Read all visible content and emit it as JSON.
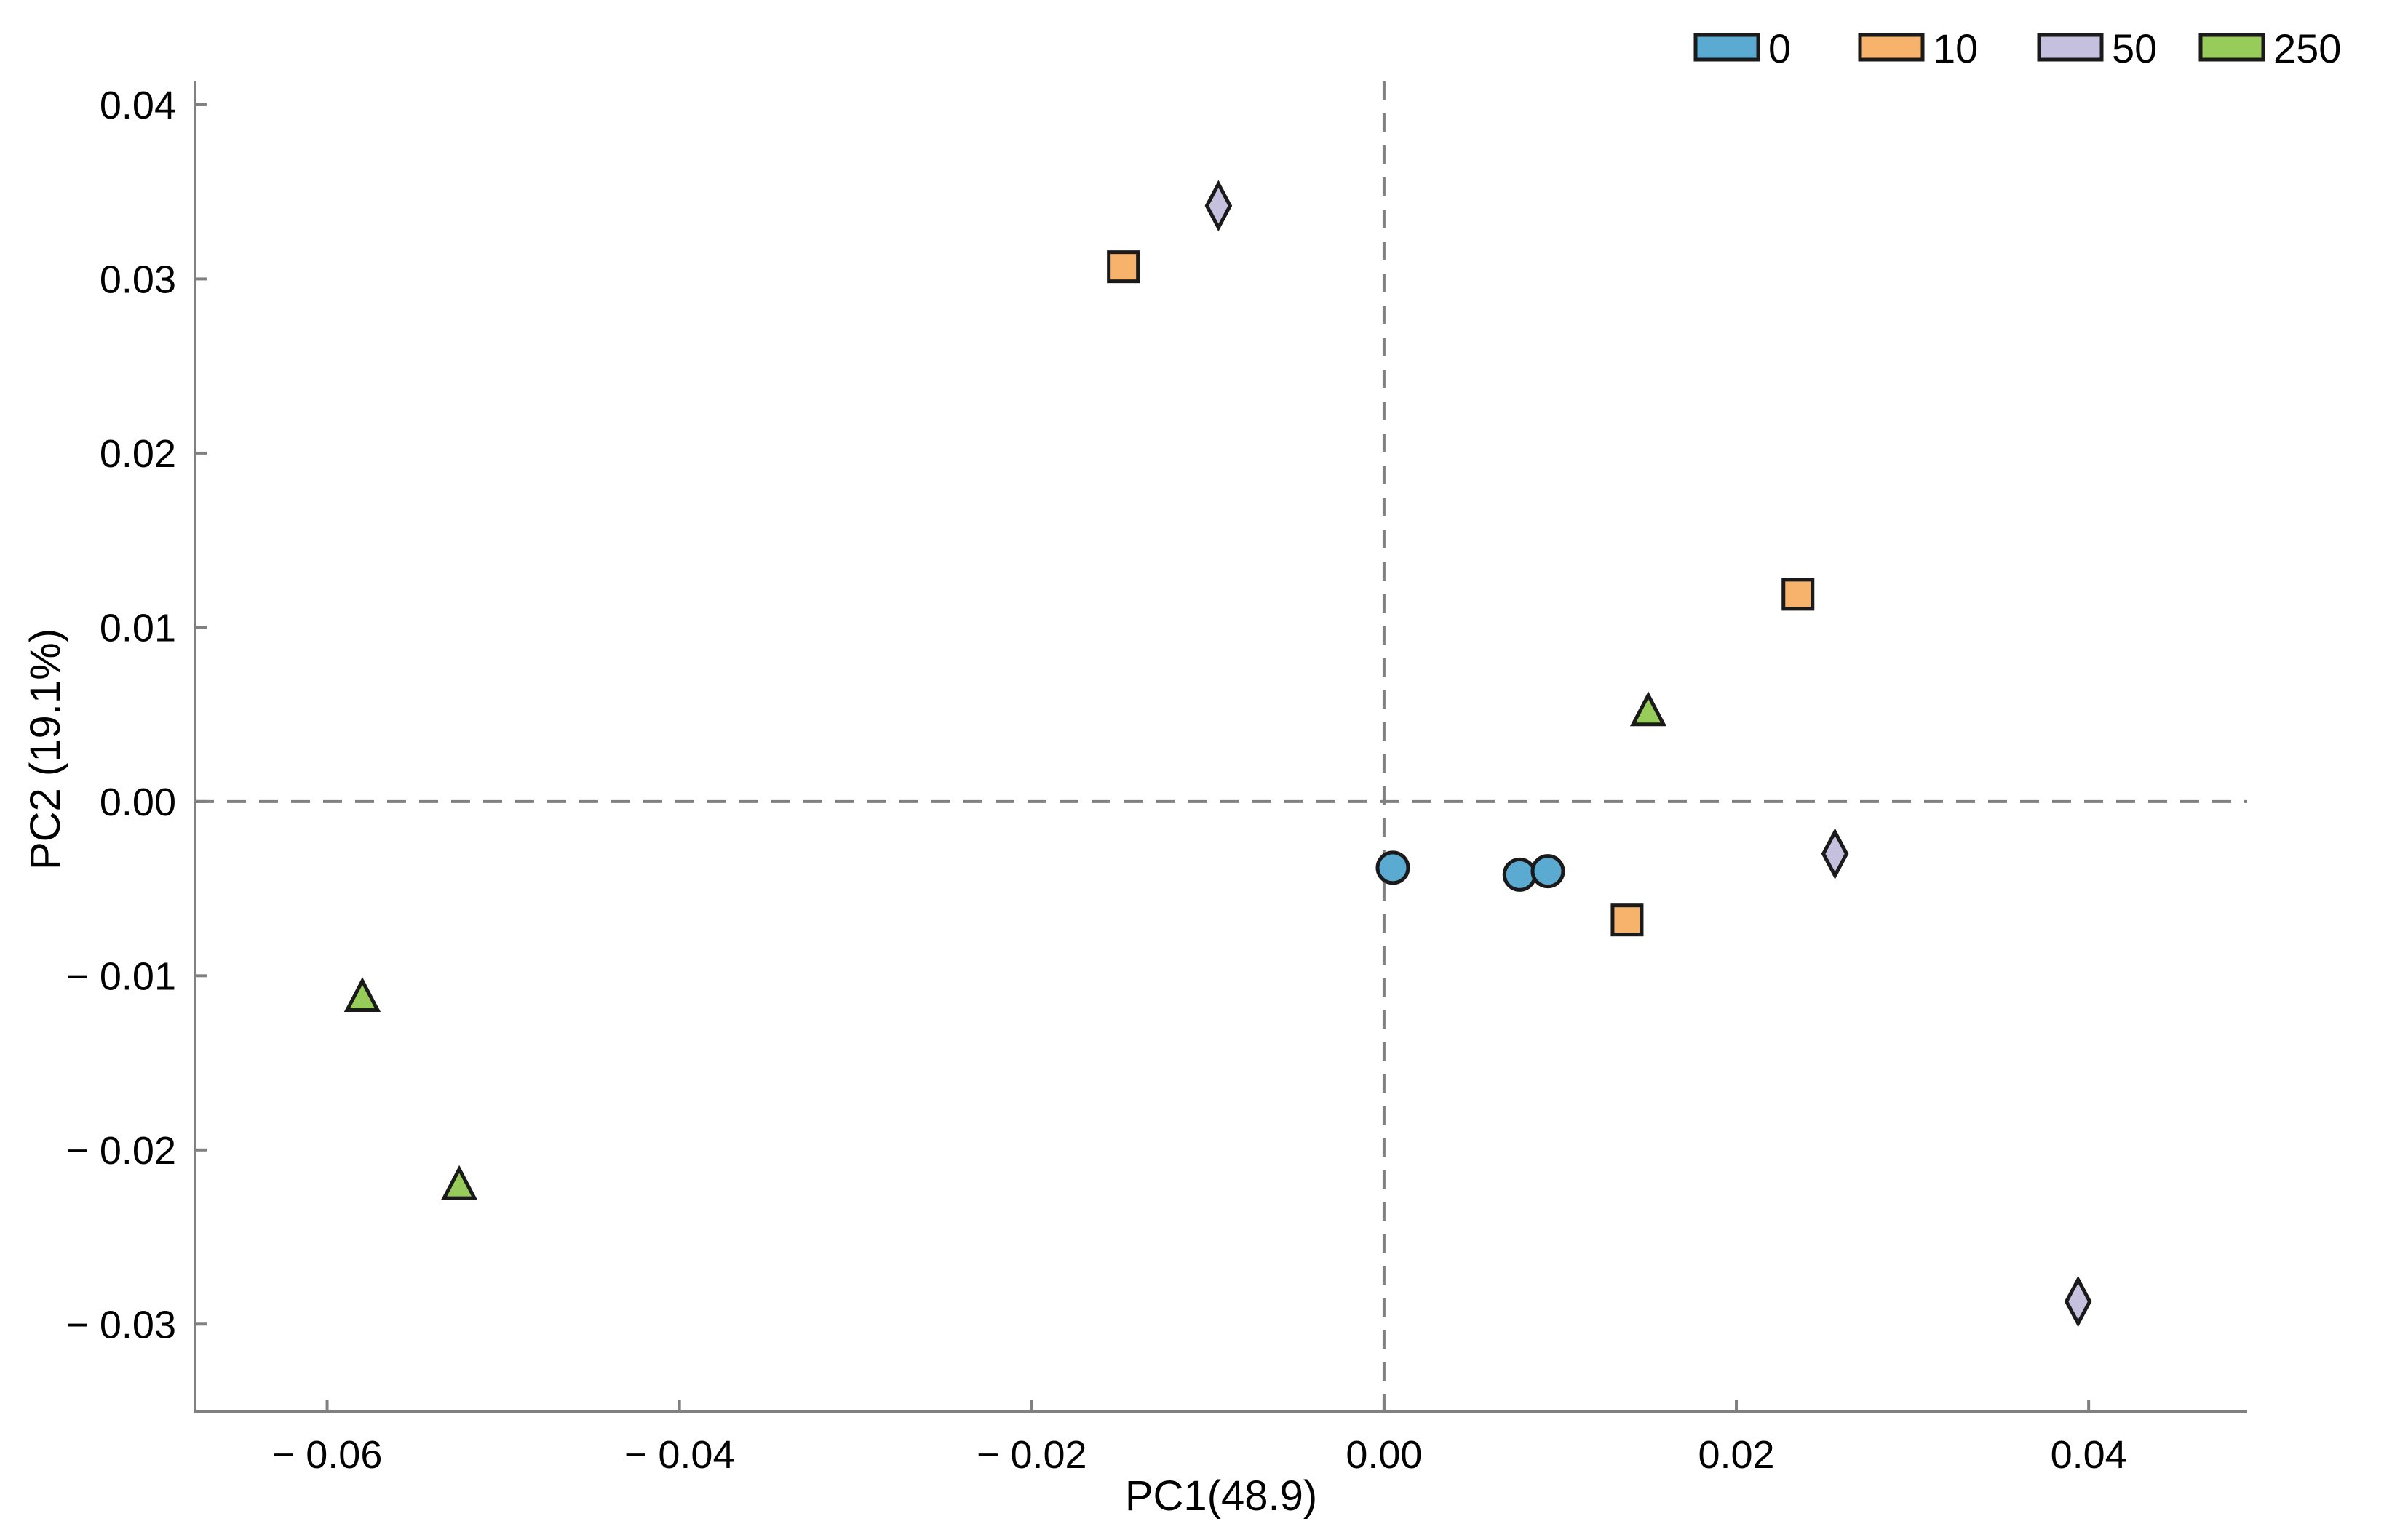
{
  "chart_data": {
    "type": "scatter",
    "title": "",
    "xlabel": "PC1(48.9)",
    "ylabel": "PC2 (19.1%)",
    "xlim": [
      -0.0675,
      0.049
    ],
    "ylim": [
      -0.035,
      0.041
    ],
    "x_ticks": [
      -0.06,
      -0.04,
      -0.02,
      0.0,
      0.02,
      0.04
    ],
    "x_tick_labels": [
      "− 0.06",
      "− 0.04",
      "− 0.02",
      "0.00",
      "0.02",
      "0.04"
    ],
    "y_ticks": [
      0.04,
      0.03,
      0.02,
      0.01,
      0.0,
      -0.01,
      -0.02,
      -0.03
    ],
    "y_tick_labels": [
      "0.04",
      "0.03",
      "0.02",
      "0.01",
      "0.00",
      "− 0.01",
      "− 0.02",
      "− 0.03"
    ],
    "reference_lines": {
      "x": 0.0,
      "y": 0.0,
      "style": "dashed",
      "color": "#808080"
    },
    "legend_position": "top-right",
    "series": [
      {
        "name": "0",
        "marker": "circle",
        "color": "#5BAAD1",
        "points": [
          [
            0.0005,
            -0.0038
          ],
          [
            0.0077,
            -0.0042
          ],
          [
            0.0093,
            -0.004
          ]
        ]
      },
      {
        "name": "10",
        "marker": "square",
        "color": "#F7B26C",
        "points": [
          [
            -0.0148,
            0.0307
          ],
          [
            0.0235,
            0.0119
          ],
          [
            0.0138,
            -0.0068
          ]
        ]
      },
      {
        "name": "50",
        "marker": "diamond",
        "color": "#C5C0DD",
        "points": [
          [
            -0.0094,
            0.0342
          ],
          [
            0.0256,
            -0.003
          ],
          [
            0.0394,
            -0.0287
          ]
        ]
      },
      {
        "name": "250",
        "marker": "triangle",
        "color": "#97CB5A",
        "points": [
          [
            0.015,
            0.0051
          ],
          [
            -0.058,
            -0.0113
          ],
          [
            -0.0525,
            -0.0221
          ]
        ]
      }
    ]
  }
}
